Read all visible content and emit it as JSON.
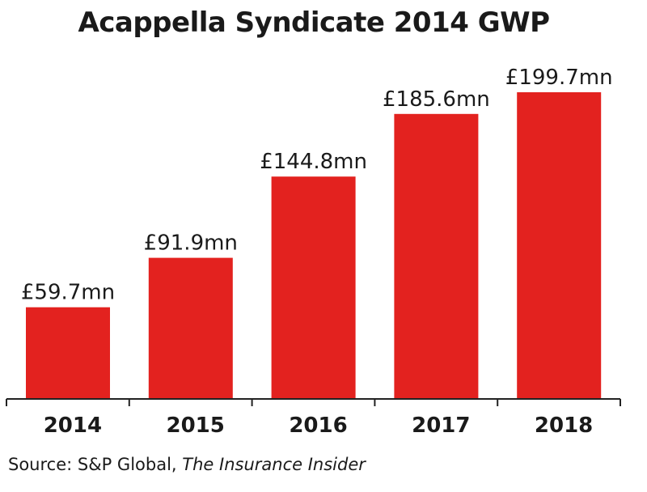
{
  "chart_data": {
    "type": "bar",
    "title": "Acappella Syndicate 2014 GWP",
    "categories": [
      "2014",
      "2015",
      "2016",
      "2017",
      "2018"
    ],
    "values": [
      59.7,
      91.9,
      144.8,
      185.6,
      199.7
    ],
    "value_labels": [
      "£59.7mn",
      "£91.9mn",
      "£144.8mn",
      "£185.6mn",
      "£199.7mn"
    ],
    "xlabel": "",
    "ylabel": "",
    "ylim": [
      0,
      199.7
    ],
    "grid": false,
    "legend": "none",
    "bar_color": "#e3221f",
    "source": {
      "prefix": "Source: S&P Global,",
      "publication": "The Insurance Insider"
    }
  }
}
